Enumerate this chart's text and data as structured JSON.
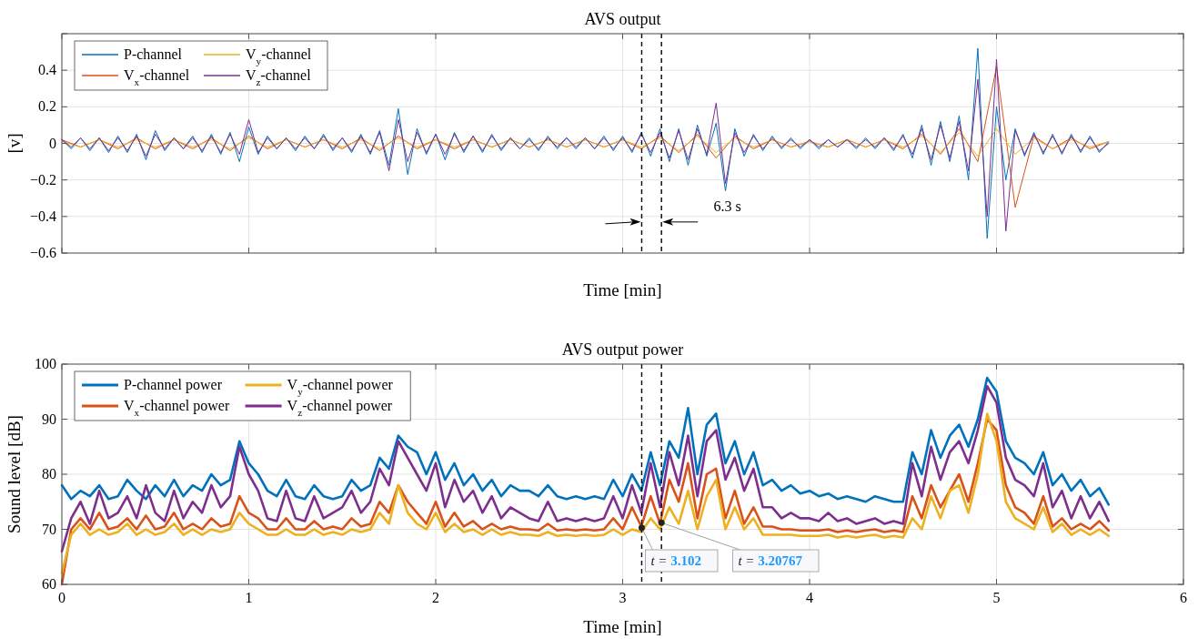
{
  "chart_data": [
    {
      "type": "line",
      "title": "AVS output",
      "xlabel": "Time [min]",
      "ylabel": "[v]",
      "xlim": [
        0,
        6
      ],
      "ylim": [
        -0.6,
        0.6
      ],
      "xticks": [
        {
          "value": 0,
          "label": null
        },
        {
          "value": 1,
          "label": null
        },
        {
          "value": 2,
          "label": null
        },
        {
          "value": 3,
          "label": null
        },
        {
          "value": 4,
          "label": null
        },
        {
          "value": 5,
          "label": null
        },
        {
          "value": 6,
          "label": null
        }
      ],
      "yticks": [
        {
          "value": -0.6,
          "label": "−0.6"
        },
        {
          "value": -0.4,
          "label": "−0.4"
        },
        {
          "value": -0.2,
          "label": "−0.2"
        },
        0,
        0.2,
        0.4,
        {
          "value": 0.6,
          "label": null
        }
      ],
      "tick_labels": "y",
      "grid": true,
      "legend": "top left",
      "line_style": "solid",
      "x": [
        0,
        0.05,
        0.1,
        0.15,
        0.2,
        0.25,
        0.3,
        0.35,
        0.4,
        0.45,
        0.5,
        0.55,
        0.6,
        0.65,
        0.7,
        0.75,
        0.8,
        0.85,
        0.9,
        0.95,
        1,
        1.05,
        1.1,
        1.15,
        1.2,
        1.25,
        1.3,
        1.35,
        1.4,
        1.45,
        1.5,
        1.55,
        1.6,
        1.65,
        1.7,
        1.75,
        1.8,
        1.85,
        1.9,
        1.95,
        2,
        2.05,
        2.1,
        2.15,
        2.2,
        2.25,
        2.3,
        2.35,
        2.4,
        2.45,
        2.5,
        2.55,
        2.6,
        2.65,
        2.7,
        2.75,
        2.8,
        2.85,
        2.9,
        2.95,
        3,
        3.05,
        3.1,
        3.15,
        3.2,
        3.25,
        3.3,
        3.35,
        3.4,
        3.45,
        3.5,
        3.55,
        3.6,
        3.65,
        3.7,
        3.75,
        3.8,
        3.85,
        3.9,
        3.95,
        4,
        4.05,
        4.1,
        4.15,
        4.2,
        4.25,
        4.3,
        4.35,
        4.4,
        4.45,
        4.5,
        4.55,
        4.6,
        4.65,
        4.7,
        4.75,
        4.8,
        4.85,
        4.9,
        4.95,
        5,
        5.05,
        5.1,
        5.15,
        5.2,
        5.25,
        5.3,
        5.35,
        5.4,
        5.45,
        5.5,
        5.55,
        5.6
      ],
      "series": [
        {
          "name": "P-channel",
          "color": "#0072bd",
          "values": [
            0.02,
            -0.03,
            0.03,
            -0.04,
            0.03,
            -0.05,
            0.04,
            -0.05,
            0.05,
            -0.09,
            0.07,
            -0.04,
            0.03,
            -0.03,
            0.04,
            -0.05,
            0.05,
            -0.06,
            0.06,
            -0.1,
            0.09,
            -0.06,
            0.04,
            -0.03,
            0.03,
            -0.04,
            0.04,
            -0.03,
            0.05,
            -0.04,
            0.03,
            -0.05,
            0.05,
            -0.06,
            0.07,
            -0.12,
            0.19,
            -0.17,
            0.08,
            -0.06,
            0.05,
            -0.09,
            0.06,
            -0.05,
            0.04,
            -0.05,
            0.05,
            -0.04,
            0.03,
            -0.03,
            0.03,
            -0.04,
            0.04,
            -0.03,
            0.03,
            -0.03,
            0.03,
            -0.03,
            0.04,
            -0.04,
            0.04,
            -0.05,
            0.06,
            -0.07,
            0.08,
            -0.1,
            0.08,
            -0.12,
            0.1,
            -0.07,
            0.11,
            -0.26,
            0.08,
            -0.07,
            0.05,
            -0.04,
            0.04,
            -0.03,
            0.03,
            -0.03,
            0.02,
            -0.03,
            0.02,
            -0.02,
            0.02,
            -0.03,
            0.03,
            -0.03,
            0.03,
            -0.04,
            0.05,
            -0.08,
            0.1,
            -0.12,
            0.12,
            -0.1,
            0.15,
            -0.2,
            0.52,
            -0.52,
            0.2,
            -0.2,
            0.08,
            -0.07,
            0.06,
            -0.06,
            0.05,
            -0.06,
            0.05,
            -0.05,
            0.04,
            -0.05,
            0.01
          ]
        },
        {
          "name": "V$_{x}$-channel",
          "color": "#d95319",
          "x": [
            0,
            0.1,
            0.2,
            0.3,
            0.4,
            0.5,
            0.6,
            0.7,
            0.8,
            0.9,
            1,
            1.1,
            1.2,
            1.3,
            1.4,
            1.5,
            1.6,
            1.7,
            1.8,
            1.9,
            2,
            2.1,
            2.2,
            2.3,
            2.4,
            2.5,
            2.6,
            2.7,
            2.8,
            2.9,
            3,
            3.1,
            3.2,
            3.3,
            3.4,
            3.5,
            3.6,
            3.7,
            3.8,
            3.9,
            4,
            4.1,
            4.2,
            4.3,
            4.4,
            4.5,
            4.6,
            4.7,
            4.8,
            4.9,
            5,
            5.1,
            5.2,
            5.3,
            5.4,
            5.5,
            5.6
          ],
          "values": [
            0.02,
            -0.02,
            0.02,
            -0.03,
            0.03,
            -0.03,
            0.02,
            -0.03,
            0.03,
            -0.04,
            0.04,
            -0.03,
            0.02,
            -0.02,
            0.02,
            -0.03,
            0.03,
            -0.04,
            0.04,
            -0.03,
            0.02,
            -0.03,
            0.02,
            -0.02,
            0.02,
            -0.02,
            0.02,
            -0.02,
            0.02,
            -0.02,
            0.02,
            -0.03,
            0.04,
            -0.05,
            0.05,
            -0.08,
            0.04,
            -0.03,
            0.02,
            -0.02,
            0.01,
            -0.02,
            0.02,
            -0.02,
            0.02,
            -0.03,
            0.05,
            -0.06,
            0.08,
            -0.1,
            0.42,
            -0.35,
            0.04,
            -0.03,
            0.03,
            -0.03,
            0.01
          ]
        },
        {
          "name": "V$_{y}$-channel",
          "color": "#edb120",
          "x": [
            0,
            0.1,
            0.2,
            0.3,
            0.4,
            0.5,
            0.6,
            0.7,
            0.8,
            0.9,
            1,
            1.1,
            1.2,
            1.3,
            1.4,
            1.5,
            1.6,
            1.7,
            1.8,
            1.9,
            2,
            2.1,
            2.2,
            2.3,
            2.4,
            2.5,
            2.6,
            2.7,
            2.8,
            2.9,
            3,
            3.1,
            3.2,
            3.3,
            3.4,
            3.5,
            3.6,
            3.7,
            3.8,
            3.9,
            4,
            4.1,
            4.2,
            4.3,
            4.4,
            4.5,
            4.6,
            4.7,
            4.8,
            4.9,
            5,
            5.1,
            5.2,
            5.3,
            5.4,
            5.5,
            5.6
          ],
          "values": [
            0.01,
            -0.02,
            0.02,
            -0.02,
            0.02,
            -0.02,
            0.02,
            -0.02,
            0.02,
            -0.03,
            0.03,
            -0.02,
            0.02,
            -0.02,
            0.02,
            -0.02,
            0.02,
            -0.03,
            0.03,
            -0.02,
            0.02,
            -0.02,
            0.02,
            -0.02,
            0.02,
            -0.02,
            0.02,
            -0.02,
            0.02,
            -0.02,
            0.02,
            -0.02,
            0.03,
            -0.04,
            0.04,
            -0.05,
            0.03,
            -0.02,
            0.02,
            -0.02,
            0.01,
            -0.02,
            0.02,
            -0.02,
            0.02,
            -0.02,
            0.04,
            -0.05,
            0.06,
            -0.07,
            0.08,
            -0.06,
            0.03,
            -0.03,
            0.02,
            -0.02,
            0.01
          ]
        },
        {
          "name": "V$_{z}$-channel",
          "color": "#7e2f8e",
          "values": [
            0.02,
            -0.02,
            0.03,
            -0.03,
            0.03,
            -0.04,
            0.03,
            -0.04,
            0.04,
            -0.07,
            0.05,
            -0.03,
            0.03,
            -0.03,
            0.03,
            -0.04,
            0.04,
            -0.05,
            0.05,
            -0.06,
            0.13,
            -0.05,
            0.03,
            -0.03,
            0.03,
            -0.03,
            0.03,
            -0.03,
            0.04,
            -0.03,
            0.03,
            -0.04,
            0.04,
            -0.05,
            0.06,
            -0.15,
            0.13,
            -0.1,
            0.06,
            -0.05,
            0.05,
            -0.06,
            0.05,
            -0.04,
            0.04,
            -0.04,
            0.04,
            -0.03,
            0.03,
            -0.03,
            0.02,
            -0.03,
            0.03,
            -0.02,
            0.03,
            -0.02,
            0.03,
            -0.03,
            0.03,
            -0.03,
            0.03,
            -0.04,
            0.05,
            -0.05,
            0.06,
            -0.08,
            0.07,
            -0.09,
            0.08,
            -0.06,
            0.22,
            -0.22,
            0.06,
            -0.05,
            0.04,
            -0.03,
            0.03,
            -0.02,
            0.02,
            -0.02,
            0.02,
            -0.02,
            0.02,
            -0.02,
            0.02,
            -0.02,
            0.02,
            -0.02,
            0.03,
            -0.03,
            0.04,
            -0.06,
            0.08,
            -0.09,
            0.1,
            -0.08,
            0.12,
            -0.15,
            0.35,
            -0.4,
            0.46,
            -0.48,
            0.07,
            -0.06,
            0.05,
            -0.05,
            0.04,
            -0.05,
            0.04,
            -0.04,
            0.03,
            -0.04,
            0
          ]
        }
      ],
      "ref_lines": [
        {
          "axis": "x",
          "value": 3.102,
          "color": "#000000",
          "line_style": "dashed"
        },
        {
          "axis": "x",
          "value": 3.20767,
          "color": "#000000",
          "line_style": "dashed"
        }
      ],
      "annotations": [
        {
          "text": "6.3 s",
          "x": 3.56,
          "y": -0.27
        }
      ]
    },
    {
      "type": "line",
      "title": "AVS output power",
      "xlabel": "Time [min]",
      "ylabel": "Sound level [dB]",
      "xlim": [
        0,
        6
      ],
      "ylim": [
        60,
        100
      ],
      "xticks": [
        0,
        1,
        2,
        3,
        4,
        5,
        6
      ],
      "yticks": [
        60,
        70,
        80,
        90,
        100
      ],
      "grid": true,
      "legend": "top left",
      "line_style": "solid",
      "x": [
        0,
        0.05,
        0.1,
        0.15,
        0.2,
        0.25,
        0.3,
        0.35,
        0.4,
        0.45,
        0.5,
        0.55,
        0.6,
        0.65,
        0.7,
        0.75,
        0.8,
        0.85,
        0.9,
        0.95,
        1,
        1.05,
        1.1,
        1.15,
        1.2,
        1.25,
        1.3,
        1.35,
        1.4,
        1.45,
        1.5,
        1.55,
        1.6,
        1.65,
        1.7,
        1.75,
        1.8,
        1.85,
        1.9,
        1.95,
        2,
        2.05,
        2.1,
        2.15,
        2.2,
        2.25,
        2.3,
        2.35,
        2.4,
        2.45,
        2.5,
        2.55,
        2.6,
        2.65,
        2.7,
        2.75,
        2.8,
        2.85,
        2.9,
        2.95,
        3,
        3.05,
        3.1,
        3.15,
        3.2,
        3.25,
        3.3,
        3.35,
        3.4,
        3.45,
        3.5,
        3.55,
        3.6,
        3.65,
        3.7,
        3.75,
        3.8,
        3.85,
        3.9,
        3.95,
        4,
        4.05,
        4.1,
        4.15,
        4.2,
        4.25,
        4.3,
        4.35,
        4.4,
        4.45,
        4.5,
        4.55,
        4.6,
        4.65,
        4.7,
        4.75,
        4.8,
        4.85,
        4.9,
        4.95,
        5,
        5.05,
        5.1,
        5.15,
        5.2,
        5.25,
        5.3,
        5.35,
        5.4,
        5.45,
        5.5,
        5.55,
        5.6
      ],
      "series": [
        {
          "name": "P-channel power",
          "color": "#0072bd",
          "values": [
            78,
            75.5,
            77,
            76,
            78,
            75.5,
            76,
            79,
            77,
            75.5,
            78,
            76,
            79,
            76,
            78,
            77,
            80,
            78,
            79,
            86,
            82,
            80,
            77,
            76,
            79,
            76,
            75.5,
            78,
            76,
            75.5,
            76,
            79,
            77,
            78,
            83,
            81,
            87,
            85,
            84,
            80,
            84,
            79,
            82,
            78,
            80,
            77,
            79,
            76,
            78,
            77,
            77,
            76,
            78,
            76,
            75.5,
            76,
            75.5,
            76,
            75.5,
            79,
            76,
            80,
            77,
            84,
            78,
            86,
            83,
            92,
            80,
            89,
            91,
            82,
            86,
            80,
            84,
            78,
            79,
            77,
            78,
            76.5,
            77,
            76,
            76.5,
            75.5,
            76,
            75.5,
            75,
            76,
            75.5,
            75,
            75,
            84,
            80,
            88,
            83,
            87,
            89,
            85,
            90,
            97.5,
            95,
            86,
            83,
            82,
            80,
            84,
            78,
            80,
            77,
            79,
            76,
            77.5,
            74.5
          ]
        },
        {
          "name": "V$_{x}$-channel power",
          "color": "#d95319",
          "values": [
            60,
            70,
            72,
            70,
            73,
            70,
            70.5,
            72,
            70,
            72.5,
            70,
            70.5,
            73,
            70,
            71,
            70,
            72,
            70.5,
            71,
            76,
            73,
            72,
            70,
            70,
            72,
            70,
            70,
            71.5,
            70,
            70.5,
            70,
            72,
            70.5,
            71,
            75,
            73,
            78,
            75,
            73,
            71,
            75,
            70.5,
            73,
            70.5,
            71.5,
            70,
            71,
            70,
            70.5,
            70,
            70,
            69.8,
            71,
            69.8,
            70,
            69.8,
            70,
            69.8,
            70,
            72,
            70,
            74,
            70.5,
            76,
            71,
            79,
            75,
            82,
            72,
            80,
            81,
            72,
            77,
            71,
            74,
            70.5,
            70.5,
            70,
            70,
            69.8,
            69.8,
            69.8,
            70,
            69.5,
            69.8,
            69.5,
            69.8,
            70,
            69.5,
            69.8,
            69.5,
            76,
            72,
            78,
            74,
            77,
            80,
            75,
            82,
            90,
            88,
            78,
            74,
            73,
            71,
            76,
            70.5,
            72,
            70,
            71,
            70,
            71.5,
            69.8
          ]
        },
        {
          "name": "V$_{y}$-channel power",
          "color": "#edb120",
          "values": [
            62,
            69,
            71,
            69,
            70,
            69,
            69.5,
            71,
            69,
            70,
            69,
            69.5,
            71,
            69,
            70,
            69,
            70,
            69.5,
            70,
            73,
            71,
            70,
            69,
            69,
            70,
            69,
            69,
            70,
            69,
            69.5,
            69,
            70,
            69.5,
            70,
            73,
            71,
            78,
            73,
            71,
            70,
            73,
            69.5,
            71,
            69.5,
            70,
            69,
            70,
            69,
            69.5,
            69,
            69,
            68.8,
            69.5,
            68.8,
            69,
            68.8,
            69,
            68.8,
            69,
            70,
            69,
            70,
            69.5,
            72,
            70,
            74,
            71,
            77,
            70,
            76,
            79,
            70,
            74,
            70,
            72,
            69,
            69,
            69,
            69,
            68.8,
            68.8,
            68.8,
            69,
            68.5,
            68.8,
            68.5,
            68.8,
            69,
            68.5,
            68.8,
            68.5,
            72,
            70,
            76,
            72,
            77,
            78,
            73,
            80,
            91,
            86,
            75,
            72,
            71,
            70,
            74,
            69.5,
            71,
            69,
            70,
            69,
            70,
            68.8
          ]
        },
        {
          "name": "V$_{z}$-channel power",
          "color": "#7e2f8e",
          "values": [
            66,
            72,
            75,
            71,
            77,
            72,
            73,
            76,
            72,
            78,
            73,
            71.5,
            77,
            72,
            75,
            73,
            78,
            74,
            76,
            85,
            80,
            77,
            72,
            71.5,
            77,
            72,
            71.5,
            76,
            72,
            73,
            74,
            77,
            73,
            75,
            81,
            78,
            86,
            83,
            80,
            77,
            82,
            74,
            79,
            75,
            77,
            73,
            76,
            72,
            74,
            73,
            72,
            71.5,
            75,
            71.5,
            72,
            71.5,
            72,
            71.5,
            72,
            76,
            72,
            78,
            73,
            82,
            74,
            84,
            78,
            87,
            76,
            86,
            88,
            79,
            83,
            77,
            81,
            74,
            74,
            72,
            73,
            72,
            72,
            71.5,
            73,
            71.5,
            72,
            71,
            71.5,
            72,
            71,
            71.5,
            71,
            82,
            76,
            85,
            79,
            84,
            86,
            82,
            88,
            96,
            93,
            83,
            79,
            78,
            76,
            82,
            74,
            77,
            72,
            76,
            72,
            75,
            71.5
          ]
        }
      ],
      "ref_lines": [
        {
          "axis": "x",
          "value": 3.102,
          "color": "#000000",
          "line_style": "dashed"
        },
        {
          "axis": "x",
          "value": 3.20767,
          "color": "#000000",
          "line_style": "dashed"
        }
      ],
      "annotations": [
        {
          "text": "t = 3.102",
          "x": 3.102,
          "y": 70.3
        },
        {
          "text": "t = 3.20767",
          "x": 3.20767,
          "y": 71.2
        }
      ]
    }
  ]
}
